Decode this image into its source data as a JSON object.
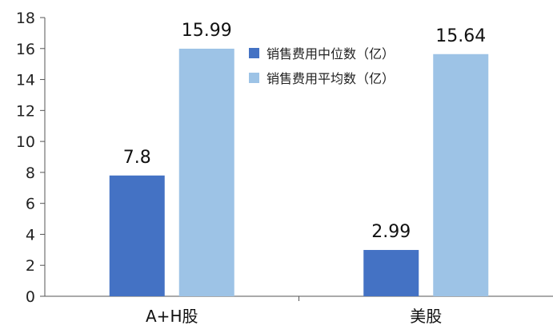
{
  "chart_data": {
    "type": "bar",
    "categories": [
      "A+H股",
      "美股"
    ],
    "series": [
      {
        "name": "销售费用中位数（亿）",
        "values": [
          7.8,
          2.99
        ],
        "color": "#4472C4"
      },
      {
        "name": "销售费用平均数（亿）",
        "values": [
          15.99,
          15.64
        ],
        "color": "#9DC3E6"
      }
    ],
    "data_labels": [
      [
        "7.8",
        "2.99"
      ],
      [
        "15.99",
        "15.64"
      ]
    ],
    "ylim": [
      0,
      18
    ],
    "yticks": [
      0,
      2,
      4,
      6,
      8,
      10,
      12,
      14,
      16,
      18
    ],
    "grid": false,
    "legend": "top-center",
    "title": "",
    "xlabel": "",
    "ylabel": ""
  }
}
